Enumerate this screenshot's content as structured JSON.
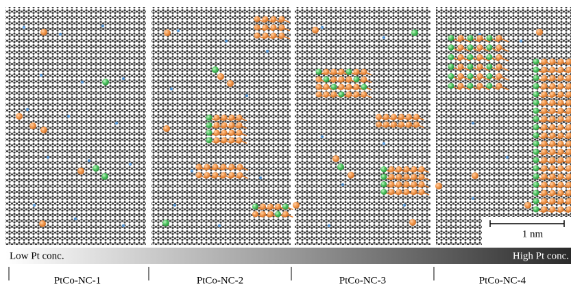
{
  "panels": [
    {
      "label": "PtCo-NC-1"
    },
    {
      "label": "PtCo-NC-2"
    },
    {
      "label": "PtCo-NC-3"
    },
    {
      "label": "PtCo-NC-4"
    }
  ],
  "gradient": {
    "low_label": "Low Pt conc.",
    "high_label": "High Pt conc."
  },
  "scale_bar": {
    "label": "1 nm"
  }
}
